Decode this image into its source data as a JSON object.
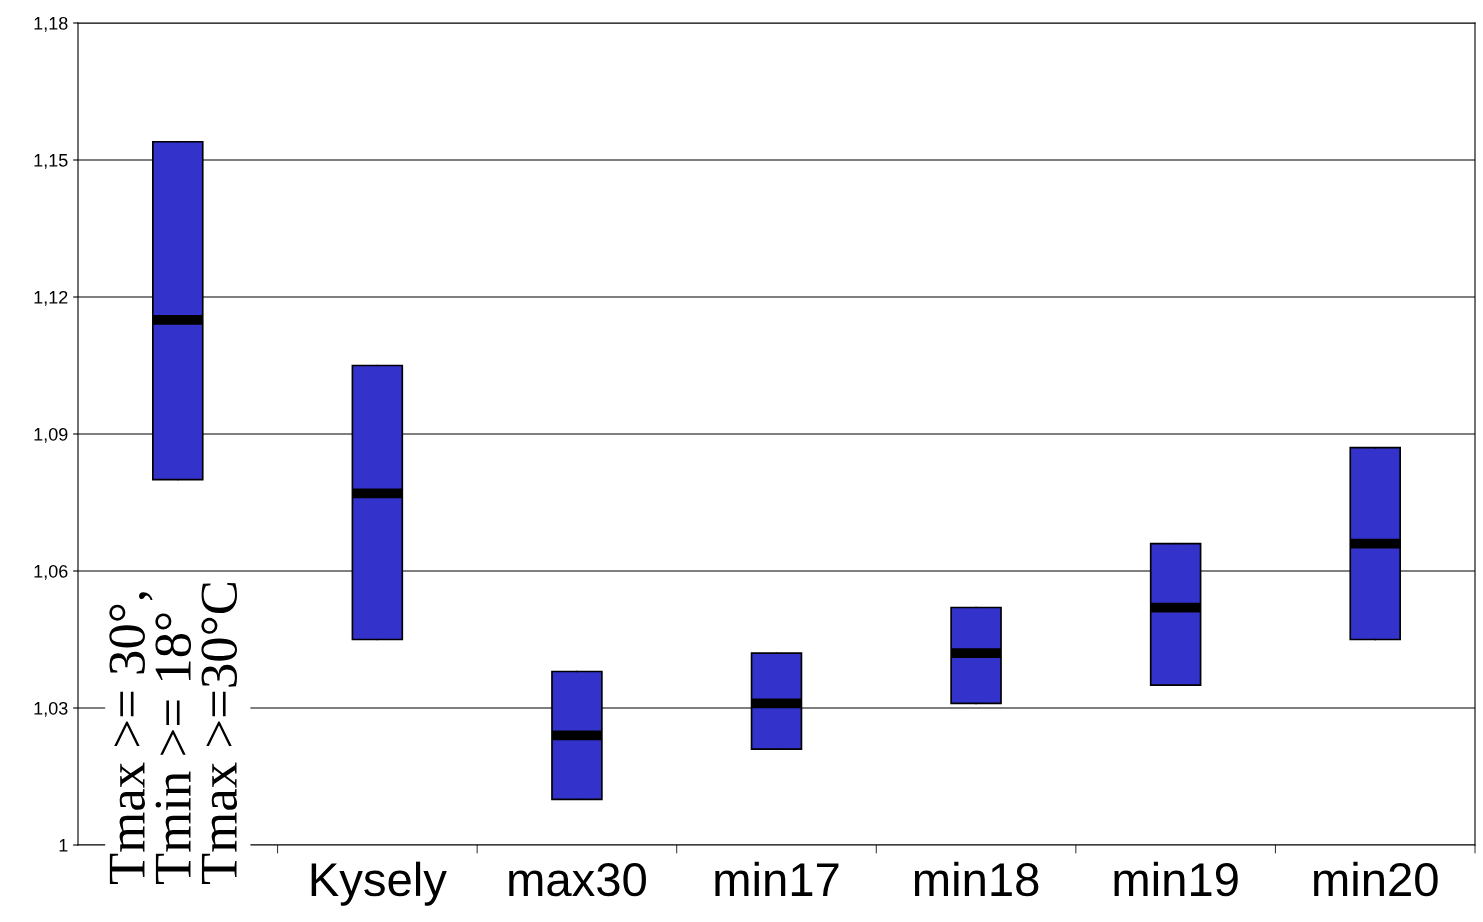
{
  "chart_data": {
    "type": "box",
    "categories": [
      "Tmax >= 30°,\nTmin >= 18°\nTmax >=30°C",
      "Kysely",
      "max30",
      "min17",
      "min18",
      "min19",
      "min20"
    ],
    "boxes": [
      {
        "low": 1.08,
        "q1": 1.08,
        "median": 1.115,
        "q3": 1.154,
        "high": 1.154
      },
      {
        "low": 1.045,
        "q1": 1.045,
        "median": 1.077,
        "q3": 1.105,
        "high": 1.105
      },
      {
        "low": 1.01,
        "q1": 1.01,
        "median": 1.024,
        "q3": 1.038,
        "high": 1.038
      },
      {
        "low": 1.021,
        "q1": 1.021,
        "median": 1.031,
        "q3": 1.042,
        "high": 1.042
      },
      {
        "low": 1.031,
        "q1": 1.031,
        "median": 1.042,
        "q3": 1.052,
        "high": 1.052
      },
      {
        "low": 1.035,
        "q1": 1.035,
        "median": 1.052,
        "q3": 1.066,
        "high": 1.066
      },
      {
        "low": 1.045,
        "q1": 1.045,
        "median": 1.066,
        "q3": 1.087,
        "high": 1.087
      }
    ],
    "color": "#3333cc",
    "ylim": [
      1,
      1.18
    ],
    "yticks": [
      1,
      {
        "value": 1.03,
        "label": "1,03"
      },
      {
        "value": 1.06,
        "label": "1,06"
      },
      {
        "value": 1.09,
        "label": "1,09"
      },
      {
        "value": 1.12,
        "label": "1,12"
      },
      {
        "value": 1.15,
        "label": "1,15"
      },
      {
        "value": 1.18,
        "label": "1,18"
      }
    ],
    "grid": "y",
    "legend": false
  }
}
